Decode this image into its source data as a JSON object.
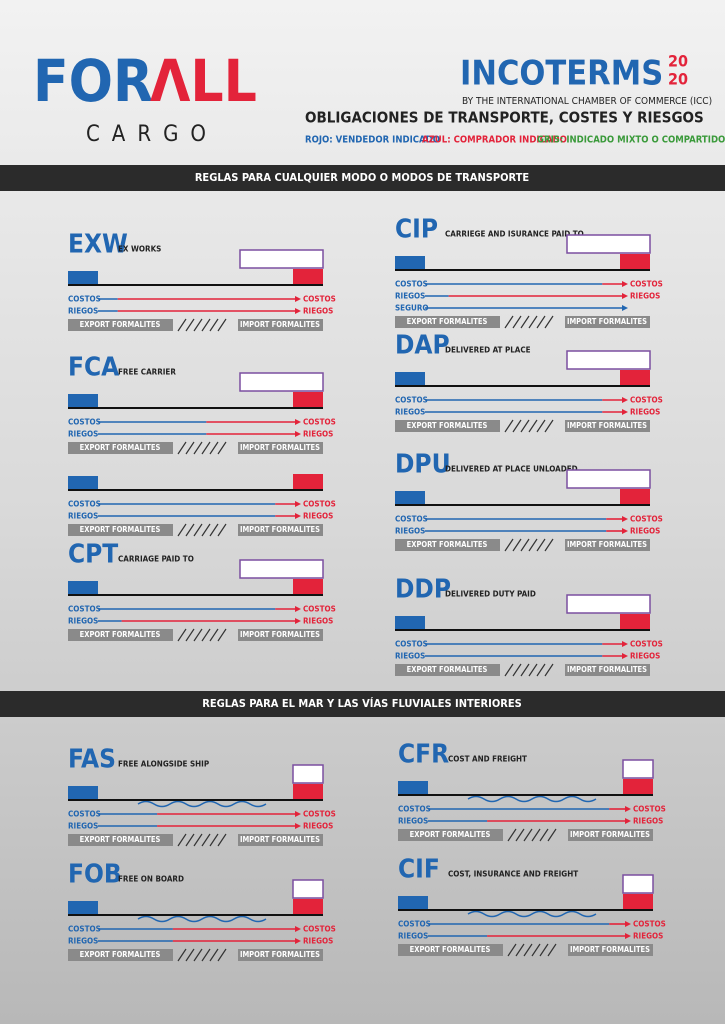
{
  "header": {
    "logo": {
      "part1": "FOR",
      "part2": "ΛLL",
      "sub": "CARGO"
    },
    "title": "INCOTERMS",
    "year_top": "20",
    "year_bottom": "20",
    "subtitle": "BY THE INTERNATIONAL CHAMBER OF COMMERCE (ICC)",
    "heading": "OBLIGACIONES DE TRANSPORTE, COSTES Y RIESGOS",
    "legend": [
      "ROJO: VENDEDOR INDICADO",
      "AZUL: COMPRADOR INDICADO",
      "GRIS: INDICADO MIXTO O COMPARTIDO"
    ]
  },
  "sections": [
    {
      "title": "REGLAS PARA CUALQUIER MODO O MODOS DE TRANSPORTE",
      "terms": [
        {
          "code": "EXW",
          "name": "EX WORKS",
          "diagrams": [
            {
              "rows": [
                {
                  "label": "COSTOS",
                  "end": "COSTOS"
                },
                {
                  "label": "RIEGOS",
                  "end": "RIEGOS"
                }
              ],
              "export": "EXPORT FORMALITES",
              "import": "IMPORT FORMALITES"
            }
          ]
        },
        {
          "code": "FCA",
          "name": "FREE CARRIER",
          "diagrams": [
            {
              "rows": [
                {
                  "label": "COSTOS",
                  "end": "COSTOS"
                },
                {
                  "label": "RIEGOS",
                  "end": "RIEGOS"
                }
              ],
              "export": "EXPORT FORMALITES",
              "import": "IMPORT FORMALITES"
            },
            {
              "rows": [
                {
                  "label": "COSTOS",
                  "end": "COSTOS"
                },
                {
                  "label": "RIEGOS",
                  "end": "RIEGOS"
                }
              ],
              "export": "EXPORT FORMALITES",
              "import": "IMPORT FORMALITES"
            }
          ]
        },
        {
          "code": "CPT",
          "name": "CARRIAGE PAID TO",
          "diagrams": [
            {
              "rows": [
                {
                  "label": "COSTOS",
                  "end": "COSTOS"
                },
                {
                  "label": "RIEGOS",
                  "end": "RIEGOS"
                }
              ],
              "export": "EXPORT FORMALITES",
              "import": "IMPORT FORMALITES"
            }
          ]
        },
        {
          "code": "CIP",
          "name": "CARRIEGE AND ISURANCE PAID TO",
          "diagrams": [
            {
              "rows": [
                {
                  "label": "COSTOS",
                  "end": "COSTOS"
                },
                {
                  "label": "RIEGOS",
                  "end": "RIEGOS"
                },
                {
                  "label": "SEGURO"
                }
              ],
              "export": "EXPORT FORMALITES",
              "import": "IMPORT FORMALITES"
            }
          ]
        },
        {
          "code": "DAP",
          "name": "DELIVERED AT PLACE",
          "diagrams": [
            {
              "rows": [
                {
                  "label": "COSTOS",
                  "end": "COSTOS"
                },
                {
                  "label": "RIEGOS",
                  "end": "RIEGOS"
                }
              ],
              "export": "EXPORT FORMALITES",
              "import": "IMPORT FORMALITES"
            }
          ]
        },
        {
          "code": "DPU",
          "name": "DELIVERED AT PLACE UNLOADED",
          "diagrams": [
            {
              "rows": [
                {
                  "label": "COSTOS",
                  "end": "COSTOS"
                },
                {
                  "label": "RIEGOS",
                  "end": "RIEGOS"
                }
              ],
              "export": "EXPORT FORMALITES",
              "import": "IMPORT FORMALITES"
            }
          ]
        },
        {
          "code": "DDP",
          "name": "DELIVERED DUTY PAID",
          "diagrams": [
            {
              "rows": [
                {
                  "label": "COSTOS",
                  "end": "COSTOS"
                },
                {
                  "label": "RIEGOS",
                  "end": "RIEGOS"
                }
              ],
              "export": "EXPORT FORMALITES",
              "import": "IMPORT FORMALITES"
            }
          ]
        }
      ]
    },
    {
      "title": "REGLAS PARA EL MAR Y LAS VÍAS FLUVIALES INTERIORES",
      "terms": [
        {
          "code": "FAS",
          "name": "FREE ALONGSIDE SHIP",
          "diagrams": [
            {
              "rows": [
                {
                  "label": "COSTOS",
                  "end": "COSTOS"
                },
                {
                  "label": "RIEGOS",
                  "end": "RIEGOS"
                }
              ],
              "export": "EXPORT FORMALITES",
              "import": "IMPORT FORMALITES"
            }
          ]
        },
        {
          "code": "FOB",
          "name": "FREE ON BOARD",
          "diagrams": [
            {
              "rows": [
                {
                  "label": "COSTOS",
                  "end": "COSTOS"
                },
                {
                  "label": "RIEGOS",
                  "end": "RIEGOS"
                }
              ],
              "export": "EXPORT FORMALITES",
              "import": "IMPORT FORMALITES"
            }
          ]
        },
        {
          "code": "CFR",
          "name": "COST AND FREIGHT",
          "diagrams": [
            {
              "rows": [
                {
                  "label": "COSTOS",
                  "end": "COSTOS"
                },
                {
                  "label": "RIEGOS",
                  "end": "RIEGOS"
                }
              ],
              "export": "EXPORT FORMALITES",
              "import": "IMPORT FORMALITES"
            }
          ]
        },
        {
          "code": "CIF",
          "name": "COST, INSURANCE AND FREIGHT",
          "diagrams": [
            {
              "rows": [
                {
                  "label": "COSTOS",
                  "end": "COSTOS"
                },
                {
                  "label": "RIEGOS",
                  "end": "RIEGOS"
                }
              ],
              "export": "EXPORT FORMALITES",
              "import": "IMPORT FORMALITES"
            }
          ]
        }
      ]
    }
  ]
}
